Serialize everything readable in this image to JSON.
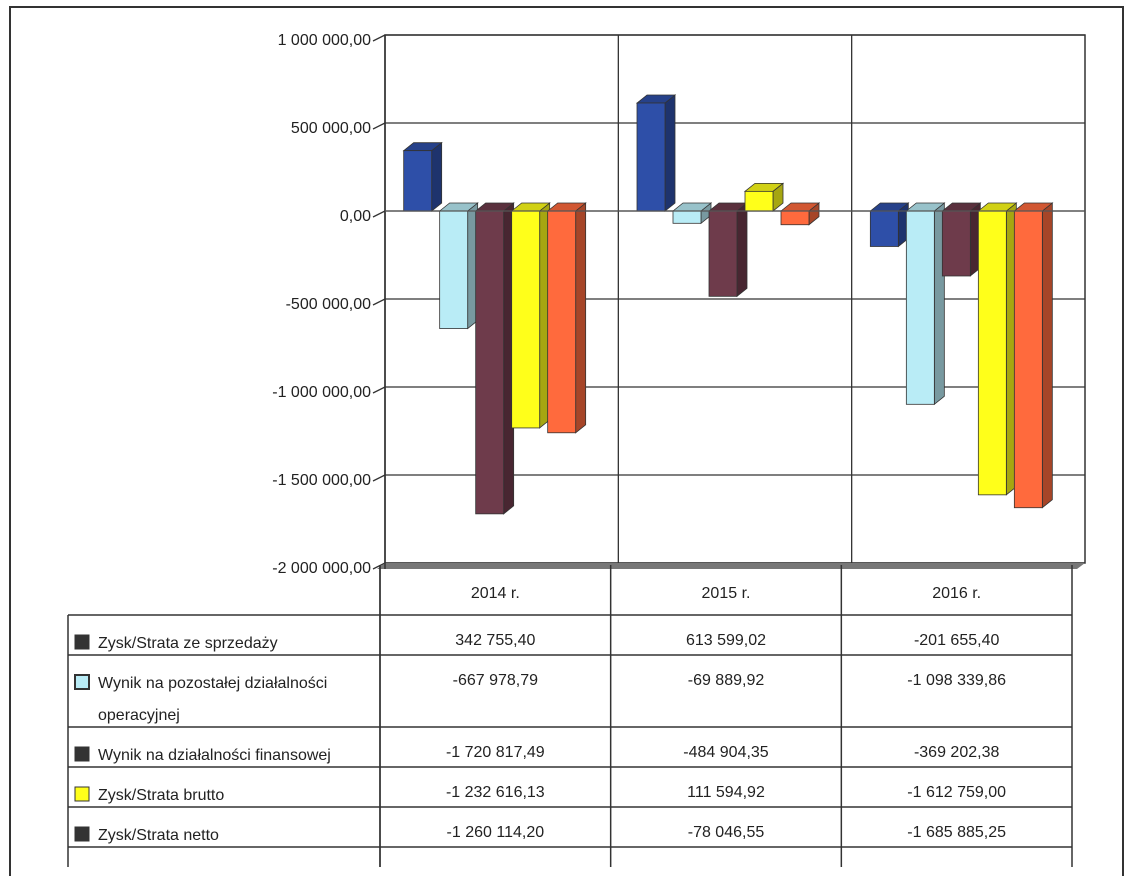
{
  "chart_data": {
    "type": "bar",
    "categories": [
      "2014 r.",
      "2015 r.",
      "2016 r."
    ],
    "y_ticks": [
      "1 000 000,00",
      "500 000,00",
      "0,00",
      "-500 000,00",
      "-1 000 000,00",
      "-1 500 000,00",
      "-2 000 000,00"
    ],
    "ylim": [
      -2000000,
      1000000
    ],
    "grid": true,
    "legend_placement": "data-table-left",
    "series": [
      {
        "name": "Zysk/Strata ze sprzedaży",
        "values": [
          342755.4,
          613599.02,
          -201655.4
        ],
        "labels": [
          "342 755,40",
          "613 599,02",
          "-201 655,40"
        ],
        "color": "#2e4fa8"
      },
      {
        "name": "Wynik na pozostałej działalności operacyjnej",
        "name_lines": [
          "Wynik na pozostałej działalności",
          "operacyjnej"
        ],
        "values": [
          -667978.79,
          -69889.92,
          -1098339.86
        ],
        "labels": [
          "-667 978,79",
          "-69 889,92",
          "-1 098 339,86"
        ],
        "color": "#b9ecf6"
      },
      {
        "name": "Wynik na działalności finansowej",
        "values": [
          -1720817.49,
          -484904.35,
          -369202.38
        ],
        "labels": [
          "-1 720 817,49",
          "-484 904,35",
          "-369 202,38"
        ],
        "color": "#6e3b4b"
      },
      {
        "name": "Zysk/Strata brutto",
        "values": [
          -1232616.13,
          111594.92,
          -1612759.0
        ],
        "labels": [
          "-1 232 616,13",
          "111 594,92",
          "-1 612 759,00"
        ],
        "color": "#ffff1a"
      },
      {
        "name": "Zysk/Strata netto",
        "values": [
          -1260114.2,
          -78046.55,
          -1685885.25
        ],
        "labels": [
          "-1 260 114,20",
          "-78 046,55",
          "-1 685 885,25"
        ],
        "color": "#ff6a3d"
      }
    ]
  }
}
